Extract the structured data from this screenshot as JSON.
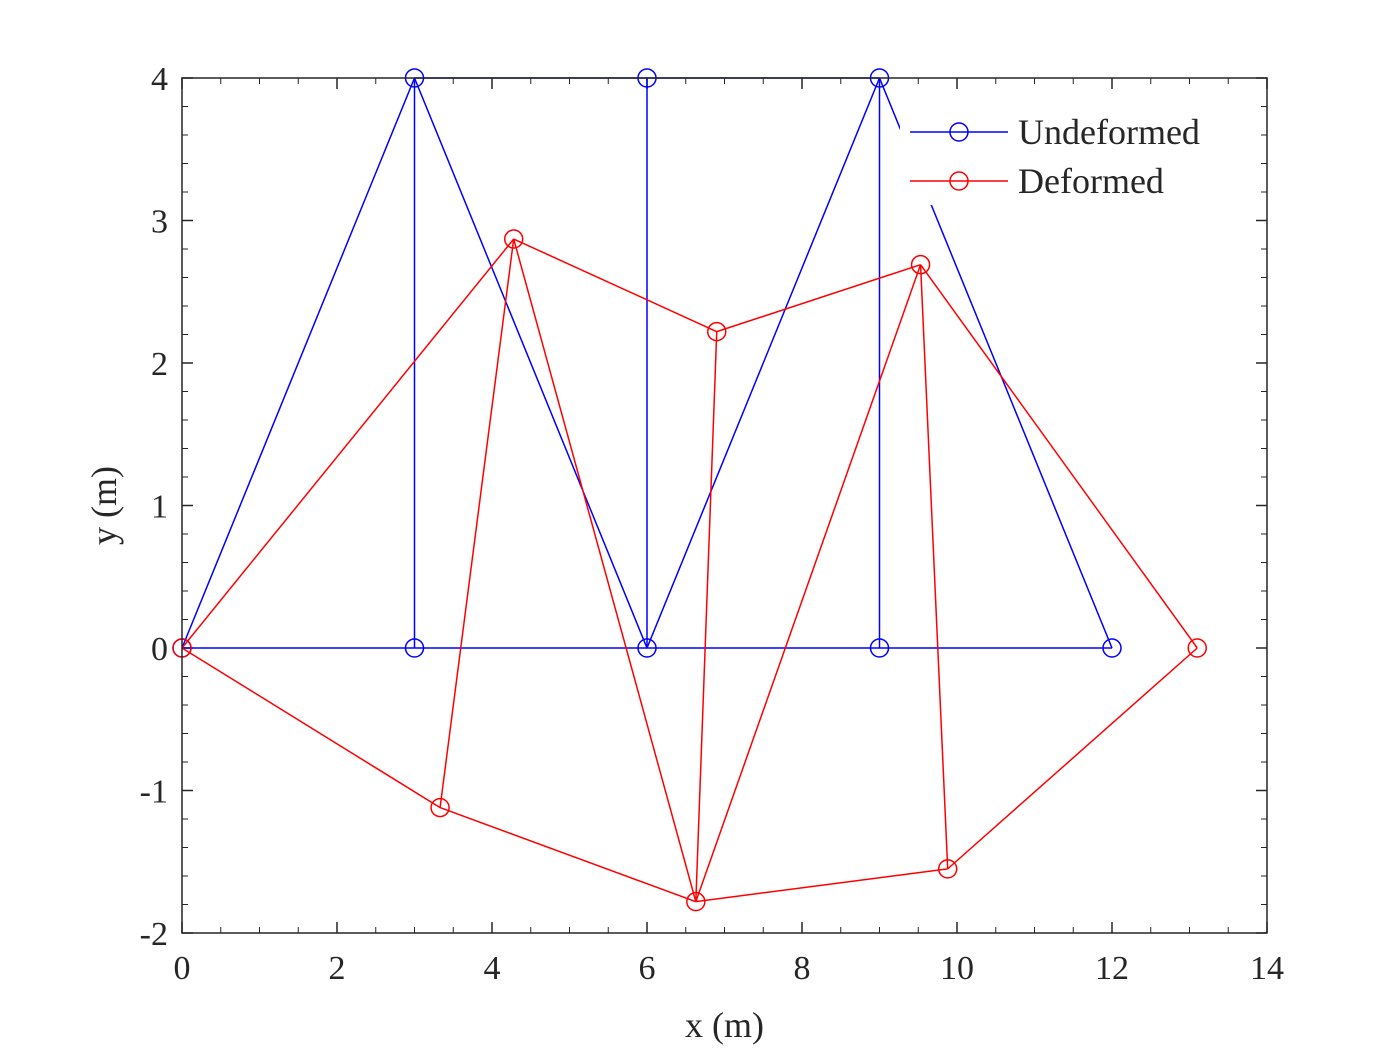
{
  "chart_data": {
    "type": "line",
    "xlabel": "x (m)",
    "ylabel": "y (m)",
    "xlim": [
      0,
      14
    ],
    "ylim": [
      -2,
      4
    ],
    "xticks": [
      0,
      2,
      4,
      6,
      8,
      10,
      12,
      14
    ],
    "yticks": [
      -2,
      -1,
      0,
      1,
      2,
      3,
      4
    ],
    "grid": false,
    "legend_position": "top-right",
    "series": [
      {
        "name": "Undeformed",
        "color": "#0000ff",
        "marker": "circle",
        "nodes": [
          [
            0,
            0
          ],
          [
            3,
            0
          ],
          [
            6,
            0
          ],
          [
            9,
            0
          ],
          [
            12,
            0
          ],
          [
            3,
            4
          ],
          [
            6,
            4
          ],
          [
            9,
            4
          ]
        ],
        "members": [
          [
            0,
            1
          ],
          [
            1,
            2
          ],
          [
            2,
            3
          ],
          [
            3,
            4
          ],
          [
            5,
            6
          ],
          [
            6,
            7
          ],
          [
            0,
            5
          ],
          [
            1,
            5
          ],
          [
            5,
            2
          ],
          [
            2,
            6
          ],
          [
            2,
            7
          ],
          [
            3,
            7
          ],
          [
            7,
            4
          ]
        ]
      },
      {
        "name": "Deformed",
        "color": "#ff0000",
        "marker": "circle",
        "nodes": [
          [
            0,
            0
          ],
          [
            3.33,
            -1.12
          ],
          [
            6.63,
            -1.78
          ],
          [
            9.88,
            -1.55
          ],
          [
            13.1,
            0
          ],
          [
            4.28,
            2.87
          ],
          [
            6.9,
            2.22
          ],
          [
            9.53,
            2.69
          ]
        ],
        "members": [
          [
            0,
            1
          ],
          [
            1,
            2
          ],
          [
            2,
            3
          ],
          [
            3,
            4
          ],
          [
            5,
            6
          ],
          [
            6,
            7
          ],
          [
            0,
            5
          ],
          [
            1,
            5
          ],
          [
            5,
            2
          ],
          [
            2,
            6
          ],
          [
            2,
            7
          ],
          [
            3,
            7
          ],
          [
            7,
            4
          ]
        ]
      }
    ]
  }
}
